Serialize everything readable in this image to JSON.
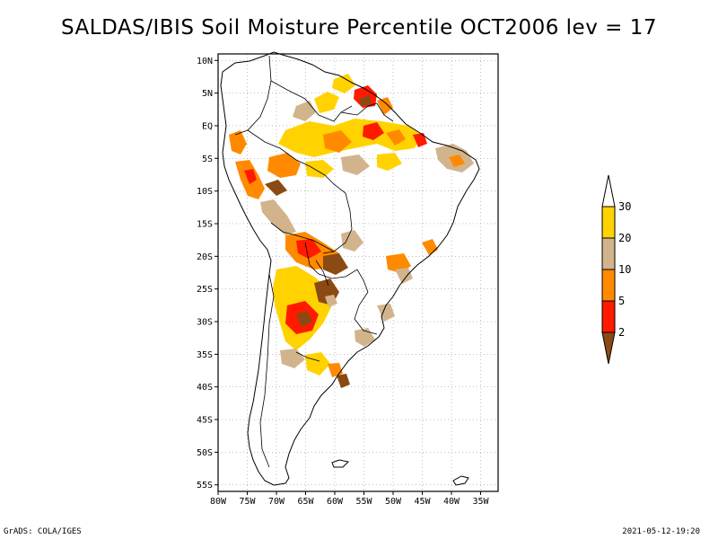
{
  "title": "SALDAS/IBIS Soil Moisture Percentile OCT2006 lev = 17",
  "footer": {
    "left": "GrADS: COLA/IGES",
    "right": "2021-05-12-19:20"
  },
  "map": {
    "lon_range": [
      -80,
      -32
    ],
    "lat_range": [
      -56,
      11
    ],
    "lon_ticks": [
      {
        "value": -80,
        "label": "80W"
      },
      {
        "value": -75,
        "label": "75W"
      },
      {
        "value": -70,
        "label": "70W"
      },
      {
        "value": -65,
        "label": "65W"
      },
      {
        "value": -60,
        "label": "60W"
      },
      {
        "value": -55,
        "label": "55W"
      },
      {
        "value": -50,
        "label": "50W"
      },
      {
        "value": -45,
        "label": "45W"
      },
      {
        "value": -40,
        "label": "40W"
      },
      {
        "value": -35,
        "label": "35W"
      }
    ],
    "lat_ticks": [
      {
        "value": 10,
        "label": "10N"
      },
      {
        "value": 5,
        "label": "5N"
      },
      {
        "value": 0,
        "label": "EQ"
      },
      {
        "value": -5,
        "label": "5S"
      },
      {
        "value": -10,
        "label": "10S"
      },
      {
        "value": -15,
        "label": "15S"
      },
      {
        "value": -20,
        "label": "20S"
      },
      {
        "value": -25,
        "label": "25S"
      },
      {
        "value": -30,
        "label": "30S"
      },
      {
        "value": -35,
        "label": "35S"
      },
      {
        "value": -40,
        "label": "40S"
      },
      {
        "value": -45,
        "label": "45S"
      },
      {
        "value": -50,
        "label": "50S"
      },
      {
        "value": -55,
        "label": "55S"
      }
    ],
    "grid": "dotted",
    "colors": {
      "below_2": "#8b4a14",
      "2_5": "#ff1a00",
      "5_10": "#ff8a00",
      "10_20": "#d2b48c",
      "20_30": "#ffd200",
      "above_30": "#ffffff"
    }
  },
  "colorbar": {
    "labels": [
      "2",
      "5",
      "10",
      "20",
      "30"
    ],
    "colors": [
      "#8b4a14",
      "#ff1a00",
      "#ff8a00",
      "#d2b48c",
      "#ffd200",
      "#ffffff"
    ]
  }
}
